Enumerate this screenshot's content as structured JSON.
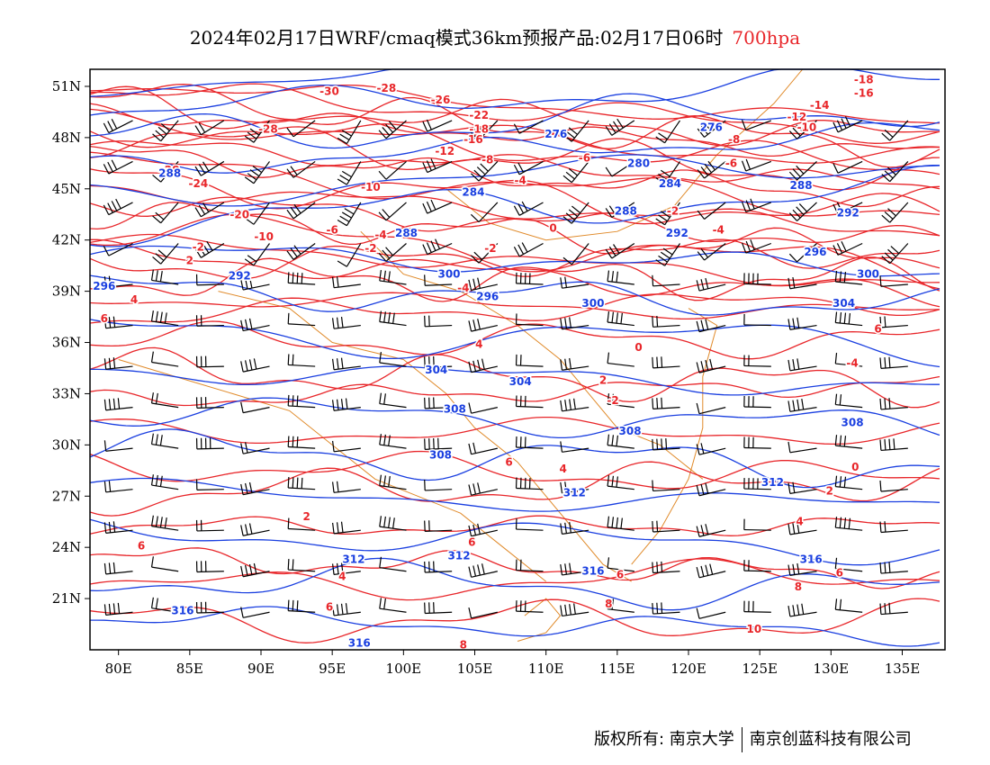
{
  "title": {
    "main": "2024年02月17日WRF/cmaq模式36km预报产品:02月17日06时",
    "level": "700hpa"
  },
  "axes": {
    "x_ticks": [
      "80E",
      "85E",
      "90E",
      "95E",
      "100E",
      "105E",
      "110E",
      "115E",
      "120E",
      "125E",
      "130E",
      "135E"
    ],
    "y_ticks": [
      "51N",
      "48N",
      "45N",
      "42N",
      "39N",
      "36N",
      "33N",
      "30N",
      "27N",
      "24N",
      "21N"
    ]
  },
  "colors": {
    "temperature": "#e8262a",
    "height": "#1a3fe0",
    "border": "#e08a2a",
    "wind": "#000000"
  },
  "footer": {
    "copyright": "版权所有: 南京大学",
    "company": "南京创蓝科技有限公司"
  },
  "chart_data": {
    "type": "map",
    "region": {
      "lon_range": [
        78,
        138
      ],
      "lat_range": [
        18,
        52
      ]
    },
    "height_contours_dagpm": [
      {
        "value": "276",
        "label_points": [
          [
            110.7,
            48.2
          ],
          [
            121.6,
            48.6
          ]
        ]
      },
      {
        "value": "280",
        "label_points": [
          [
            116.5,
            46.5
          ]
        ]
      },
      {
        "value": "284",
        "label_points": [
          [
            104.9,
            44.8
          ],
          [
            118.7,
            45.3
          ]
        ]
      },
      {
        "value": "288",
        "label_points": [
          [
            83.6,
            45.9
          ],
          [
            100.2,
            42.4
          ],
          [
            115.6,
            43.7
          ],
          [
            127.9,
            45.2
          ]
        ]
      },
      {
        "value": "292",
        "label_points": [
          [
            88.5,
            39.9
          ],
          [
            119.2,
            42.4
          ],
          [
            131.2,
            43.6
          ]
        ]
      },
      {
        "value": "296",
        "label_points": [
          [
            79.0,
            39.3
          ],
          [
            105.9,
            38.7
          ],
          [
            128.9,
            41.3
          ]
        ]
      },
      {
        "value": "300",
        "label_points": [
          [
            103.2,
            40.0
          ],
          [
            113.3,
            38.3
          ],
          [
            132.6,
            40.0
          ]
        ]
      },
      {
        "value": "304",
        "label_points": [
          [
            102.3,
            34.4
          ],
          [
            108.2,
            33.7
          ],
          [
            130.9,
            38.3
          ]
        ]
      },
      {
        "value": "308",
        "label_points": [
          [
            103.6,
            32.1
          ],
          [
            102.6,
            29.4
          ],
          [
            115.9,
            30.8
          ],
          [
            131.5,
            31.3
          ]
        ]
      },
      {
        "value": "312",
        "label_points": [
          [
            96.5,
            23.3
          ],
          [
            103.9,
            23.5
          ],
          [
            112.0,
            27.2
          ],
          [
            125.9,
            27.8
          ]
        ]
      },
      {
        "value": "316",
        "label_points": [
          [
            84.5,
            20.3
          ],
          [
            96.9,
            18.4
          ],
          [
            113.3,
            22.6
          ],
          [
            128.6,
            23.3
          ]
        ]
      }
    ],
    "temperature_contours_C": [
      {
        "value": "-30",
        "label_points": [
          [
            94.8,
            50.7
          ]
        ]
      },
      {
        "value": "-28",
        "label_points": [
          [
            98.8,
            50.9
          ],
          [
            90.5,
            48.5
          ],
          [
            83.6,
            46.1
          ]
        ]
      },
      {
        "value": "-26",
        "label_points": [
          [
            102.6,
            50.2
          ]
        ]
      },
      {
        "value": "-24",
        "label_points": [
          [
            85.6,
            45.3
          ]
        ]
      },
      {
        "value": "-22",
        "label_points": [
          [
            105.3,
            49.3
          ]
        ]
      },
      {
        "value": "-20",
        "label_points": [
          [
            88.5,
            43.5
          ]
        ]
      },
      {
        "value": "-18",
        "label_points": [
          [
            105.3,
            48.5
          ],
          [
            132.3,
            51.4
          ]
        ]
      },
      {
        "value": "-16",
        "label_points": [
          [
            104.9,
            47.9
          ],
          [
            132.3,
            50.6
          ]
        ]
      },
      {
        "value": "-14",
        "label_points": [
          [
            129.2,
            49.9
          ]
        ]
      },
      {
        "value": "-12",
        "label_points": [
          [
            102.9,
            47.2
          ],
          [
            127.6,
            49.2
          ]
        ]
      },
      {
        "value": "-10",
        "label_points": [
          [
            97.7,
            45.1
          ],
          [
            90.2,
            42.2
          ],
          [
            128.3,
            48.6
          ]
        ]
      },
      {
        "value": "-8",
        "label_points": [
          [
            105.9,
            46.7
          ],
          [
            123.2,
            47.9
          ]
        ]
      },
      {
        "value": "-6",
        "label_points": [
          [
            112.7,
            46.8
          ],
          [
            123.0,
            46.5
          ],
          [
            95.0,
            42.6
          ]
        ]
      },
      {
        "value": "-4",
        "label_points": [
          [
            108.2,
            45.5
          ],
          [
            98.4,
            42.3
          ],
          [
            104.2,
            39.2
          ],
          [
            122.1,
            42.6
          ],
          [
            131.5,
            34.8
          ]
        ]
      },
      {
        "value": "-2",
        "label_points": [
          [
            85.6,
            41.6
          ],
          [
            97.7,
            41.5
          ],
          [
            106.1,
            41.5
          ],
          [
            118.9,
            43.7
          ],
          [
            114.7,
            32.6
          ]
        ]
      },
      {
        "value": "0",
        "label_points": [
          [
            110.5,
            42.7
          ],
          [
            116.5,
            35.7
          ],
          [
            131.7,
            28.7
          ]
        ]
      },
      {
        "value": "2",
        "label_points": [
          [
            85.0,
            40.8
          ],
          [
            114.0,
            33.8
          ],
          [
            93.2,
            25.8
          ],
          [
            129.9,
            27.3
          ]
        ]
      },
      {
        "value": "4",
        "label_points": [
          [
            81.1,
            38.5
          ],
          [
            105.3,
            35.9
          ],
          [
            111.2,
            28.6
          ],
          [
            95.7,
            22.3
          ],
          [
            127.8,
            25.5
          ]
        ]
      },
      {
        "value": "6",
        "label_points": [
          [
            79.0,
            37.4
          ],
          [
            107.4,
            29.0
          ],
          [
            133.3,
            36.8
          ],
          [
            81.6,
            24.1
          ],
          [
            104.8,
            24.3
          ],
          [
            94.8,
            20.5
          ],
          [
            115.2,
            22.4
          ],
          [
            130.6,
            22.5
          ]
        ]
      },
      {
        "value": "8",
        "label_points": [
          [
            114.4,
            20.7
          ],
          [
            127.7,
            21.7
          ],
          [
            104.2,
            18.3
          ]
        ]
      },
      {
        "value": "10",
        "label_points": [
          [
            124.6,
            19.2
          ]
        ]
      }
    ],
    "wind_barbs": "black barbs on a regular grid showing predominantly westerly flow (5-20 m/s)"
  }
}
